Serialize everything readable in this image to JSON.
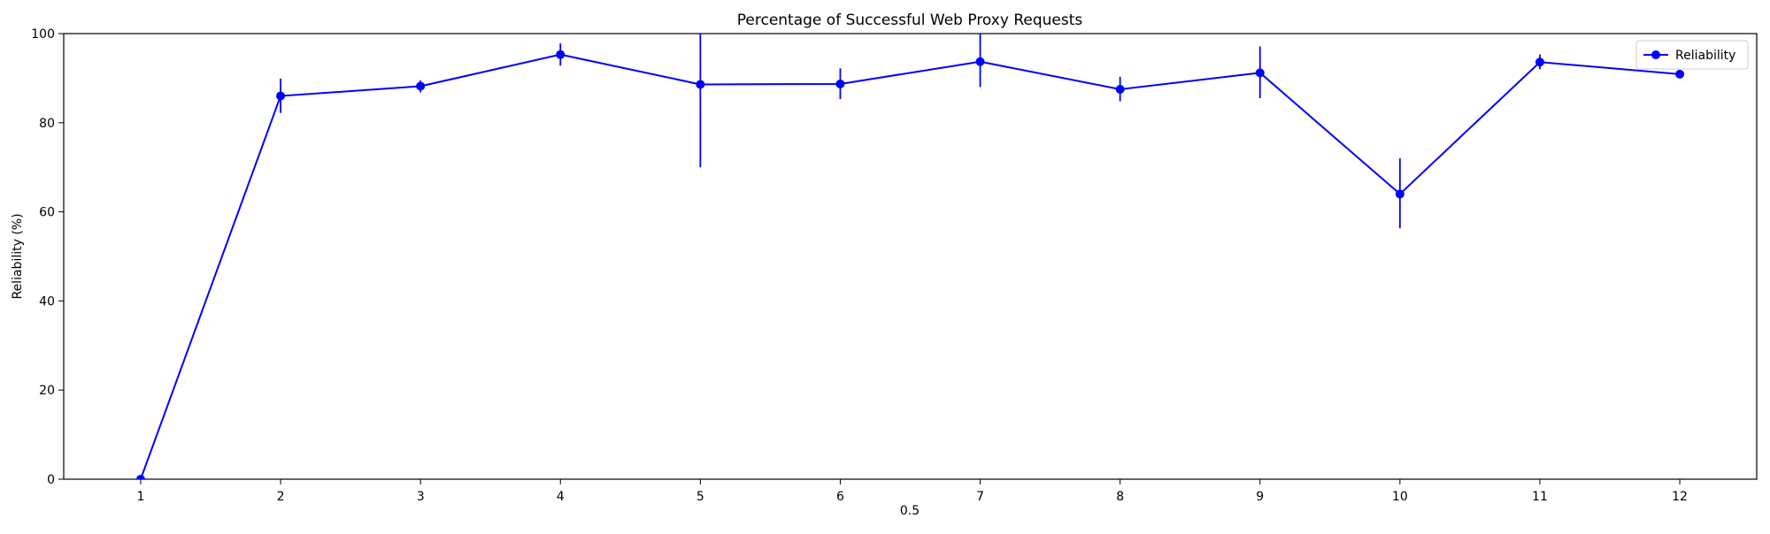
{
  "chart_data": {
    "type": "line",
    "title": "Percentage of Successful Web Proxy Requests",
    "xlabel": "0.5",
    "ylabel": "Reliability (%)",
    "x": [
      1,
      2,
      3,
      4,
      5,
      6,
      7,
      8,
      9,
      10,
      11,
      12
    ],
    "xlim": [
      0.45,
      12.55
    ],
    "ylim": [
      0,
      100
    ],
    "xticks": [
      1,
      2,
      3,
      4,
      5,
      6,
      7,
      8,
      9,
      10,
      11,
      12
    ],
    "yticks": [
      0,
      20,
      40,
      60,
      80,
      100
    ],
    "grid": false,
    "legend": "top-right",
    "series": [
      {
        "name": "Reliability",
        "color": "#0000ff",
        "marker": "circle",
        "values": [
          0,
          86,
          88.2,
          95.3,
          88.6,
          88.7,
          93.7,
          87.5,
          91.2,
          64.0,
          93.6,
          90.9
        ],
        "err_low": [
          0,
          82.2,
          86.8,
          92.8,
          70.0,
          85.3,
          88.0,
          84.8,
          85.5,
          56.3,
          92.0,
          90.0
        ],
        "err_high": [
          0,
          89.9,
          89.5,
          97.8,
          100,
          92.2,
          100,
          90.3,
          97.1,
          72.0,
          95.3,
          91.8
        ]
      }
    ]
  }
}
